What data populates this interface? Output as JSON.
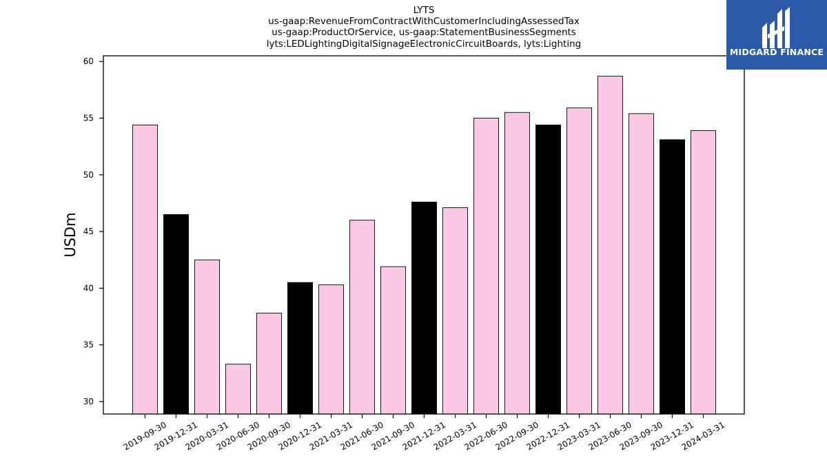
{
  "title_lines": [
    "LYTS",
    "us-gaap:RevenueFromContractWithCustomerIncludingAssessedTax",
    "us-gaap:ProductOrService, us-gaap:StatementBusinessSegments",
    "lyts:LEDLightingDigitalSignageElectronicCircuitBoards, lyts:Lighting"
  ],
  "logo": {
    "text": "MIDGARD FINANCE",
    "bg_color": "#2c5aa8"
  },
  "colors": {
    "pink": "#fcc9e4",
    "black": "#000000",
    "edge": "#000000"
  },
  "chart_data": {
    "type": "bar",
    "title": "LYTS",
    "xlabel": "",
    "ylabel": "USDm",
    "ylim": [
      28.9,
      60.5
    ],
    "yticks": [
      30,
      35,
      40,
      45,
      50,
      55,
      60
    ],
    "grid": false,
    "categories": [
      "2019-09-30",
      "2019-12-31",
      "2020-03-31",
      "2020-06-30",
      "2020-09-30",
      "2020-12-31",
      "2021-03-31",
      "2021-06-30",
      "2021-09-30",
      "2021-12-31",
      "2022-03-31",
      "2022-06-30",
      "2022-09-30",
      "2022-12-31",
      "2023-03-31",
      "2023-06-30",
      "2023-09-30",
      "2023-12-31",
      "2024-03-31"
    ],
    "values": [
      54.4,
      46.5,
      42.5,
      33.3,
      37.8,
      40.5,
      40.3,
      46.0,
      41.9,
      47.6,
      47.1,
      55.0,
      55.5,
      54.4,
      55.9,
      58.7,
      55.4,
      53.1,
      53.9
    ],
    "bar_colors": [
      "pink",
      "black",
      "pink",
      "pink",
      "pink",
      "black",
      "pink",
      "pink",
      "pink",
      "black",
      "pink",
      "pink",
      "pink",
      "black",
      "pink",
      "pink",
      "pink",
      "black",
      "pink"
    ]
  }
}
